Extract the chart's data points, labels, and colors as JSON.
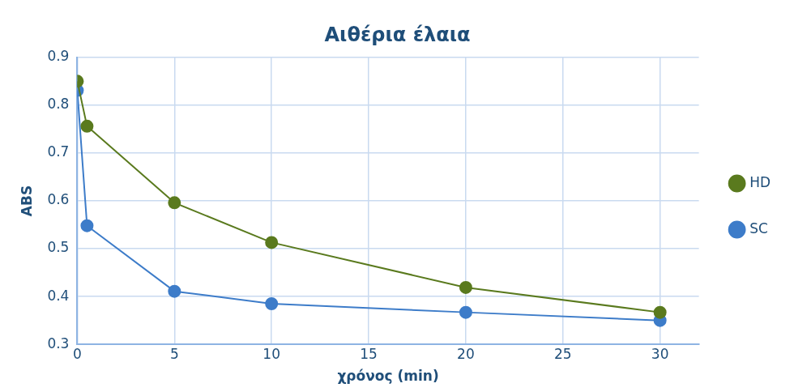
{
  "chart_data": {
    "type": "line",
    "title": "Αιθέρια έλαια",
    "xlabel": "χρόνος (min)",
    "ylabel": "ABS",
    "x": [
      0,
      0.5,
      5,
      10,
      20,
      30
    ],
    "series": [
      {
        "name": "HD",
        "color": "#5a7a1e",
        "values": [
          0.85,
          0.756,
          0.596,
          0.513,
          0.419,
          0.367
        ]
      },
      {
        "name": "SC",
        "color": "#3d7cc9",
        "values": [
          0.831,
          0.548,
          0.411,
          0.385,
          0.367,
          0.35
        ]
      }
    ],
    "xlim": [
      0,
      32
    ],
    "xticks": [
      0,
      5,
      10,
      15,
      20,
      25,
      30
    ],
    "ylim": [
      0.3,
      0.9
    ],
    "yticks": [
      0.3,
      0.4,
      0.5,
      0.6,
      0.7,
      0.8,
      0.9
    ],
    "grid": true,
    "legend": "right",
    "marker": "circle",
    "line_style": "solid"
  }
}
